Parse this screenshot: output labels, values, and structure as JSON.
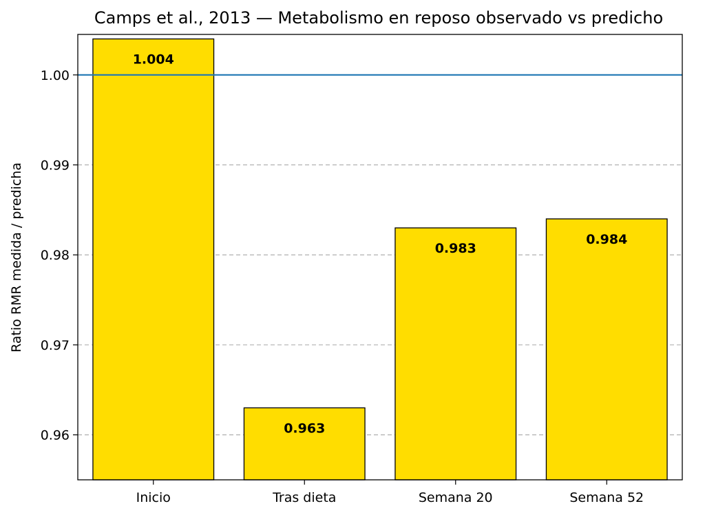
{
  "chart_data": {
    "type": "bar",
    "title": "Camps et al., 2013 — Metabolismo en reposo observado vs predicho",
    "xlabel": "",
    "ylabel": "Ratio RMR medida / predicha",
    "categories": [
      "Inicio",
      "Tras dieta",
      "Semana 20",
      "Semana 52"
    ],
    "values": [
      1.004,
      0.963,
      0.983,
      0.984
    ],
    "value_labels": [
      "1.004",
      "0.963",
      "0.983",
      "0.984"
    ],
    "ylim": [
      0.955,
      1.0045
    ],
    "yticks": [
      0.96,
      0.97,
      0.98,
      0.99,
      1.0
    ],
    "ytick_labels": [
      "0.96",
      "0.97",
      "0.98",
      "0.99",
      "1.00"
    ],
    "reference_line": {
      "y": 1.0,
      "color": "#1f77b4"
    },
    "grid": "horizontal dashed",
    "colors": {
      "bar_fill": "#FFDD00",
      "bar_edge": "#000000",
      "grid": "#b0b0b0"
    }
  }
}
